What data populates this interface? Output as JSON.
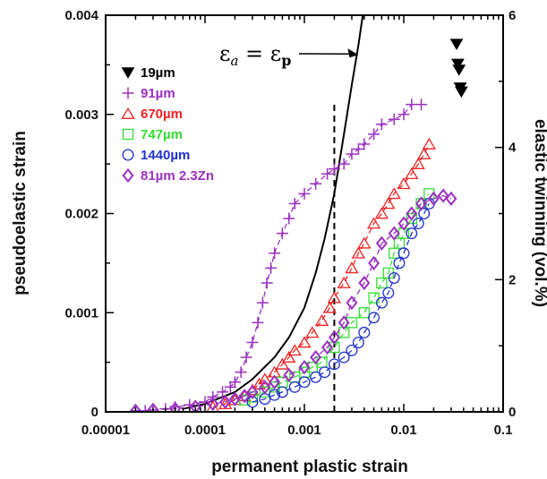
{
  "chart_data": {
    "type": "scatter",
    "title": "",
    "xlabel": "permanent plastic strain",
    "ylabel": "pseudoelastic strain",
    "y2label": "elastic twinning (vol.%)",
    "xscale": "log",
    "xlim": [
      1e-05,
      0.1
    ],
    "ylim": [
      0,
      0.004
    ],
    "y2lim": [
      0,
      6
    ],
    "xticks": [
      {
        "v": 1e-05,
        "label": "0.00001"
      },
      {
        "v": 0.0001,
        "label": "0.0001"
      },
      {
        "v": 0.001,
        "label": "0.001"
      },
      {
        "v": 0.01,
        "label": "0.01"
      },
      {
        "v": 0.1,
        "label": "0.1"
      }
    ],
    "yticks": [
      {
        "v": 0,
        "label": "0"
      },
      {
        "v": 0.001,
        "label": "0.001"
      },
      {
        "v": 0.002,
        "label": "0.002"
      },
      {
        "v": 0.003,
        "label": "0.003"
      },
      {
        "v": 0.004,
        "label": "0.004"
      }
    ],
    "y2ticks": [
      {
        "v": 0,
        "label": "0"
      },
      {
        "v": 2,
        "label": "2"
      },
      {
        "v": 4,
        "label": "4"
      },
      {
        "v": 6,
        "label": "6"
      }
    ],
    "legend_position": "top-left",
    "vline": {
      "x": 0.002,
      "style": "dashed",
      "y_top": 0.0031
    },
    "curve": {
      "x": [
        6e-05,
        0.0001,
        0.0002,
        0.0003,
        0.0005,
        0.0007,
        0.001,
        0.0013,
        0.0016,
        0.002,
        0.0025,
        0.003,
        0.0035,
        0.004,
        0.0045
      ],
      "y": [
        3e-05,
        8e-05,
        0.0002,
        0.00033,
        0.00055,
        0.00075,
        0.00105,
        0.0014,
        0.00175,
        0.0022,
        0.0028,
        0.0033,
        0.0037,
        0.0041,
        0.0045
      ]
    },
    "annotation": {
      "text_main": "ε",
      "sub_a": "a",
      "text_eq": " = ε",
      "sub_p": "p",
      "arrow_to_x": 0.0035,
      "arrow_to_y": 0.0036
    },
    "series": [
      {
        "name": "19µm",
        "marker": "triangle-down-filled",
        "color": "#000000",
        "dashed": false,
        "x": [
          0.034,
          0.035,
          0.036,
          0.037,
          0.038
        ],
        "y": [
          0.00371,
          0.00351,
          0.00345,
          0.00327,
          0.00323
        ]
      },
      {
        "name": "91µm",
        "marker": "plus",
        "color": "#9b30c0",
        "dashed": true,
        "x": [
          2e-05,
          2.5e-05,
          3e-05,
          4e-05,
          5e-05,
          7e-05,
          0.0001,
          0.00012,
          0.00015,
          0.00018,
          0.0002,
          0.00023,
          0.00026,
          0.0003,
          0.00034,
          0.00038,
          0.00042,
          0.00046,
          0.0005,
          0.0006,
          0.0007,
          0.0008,
          0.001,
          0.0013,
          0.0017,
          0.002,
          0.0025,
          0.003,
          0.0035,
          0.004,
          0.005,
          0.006,
          0.008,
          0.01,
          0.012,
          0.015
        ],
        "y": [
          1e-05,
          1e-05,
          2e-05,
          3e-05,
          5e-05,
          7e-05,
          0.0001,
          0.00015,
          0.0002,
          0.00025,
          0.0003,
          0.0004,
          0.00055,
          0.0007,
          0.0009,
          0.0011,
          0.0013,
          0.00145,
          0.0016,
          0.0018,
          0.00195,
          0.0021,
          0.0022,
          0.0023,
          0.0024,
          0.00245,
          0.0025,
          0.0026,
          0.00265,
          0.0027,
          0.0028,
          0.0029,
          0.00295,
          0.003,
          0.0031,
          0.0031
        ]
      },
      {
        "name": "670µm",
        "marker": "triangle-up",
        "color": "#ee2222",
        "dashed": true,
        "x": [
          0.00012,
          0.00016,
          0.0002,
          0.00025,
          0.0003,
          0.00035,
          0.0004,
          0.0005,
          0.0006,
          0.0007,
          0.0008,
          0.001,
          0.0012,
          0.0015,
          0.0018,
          0.002,
          0.0025,
          0.003,
          0.0035,
          0.004,
          0.005,
          0.006,
          0.007,
          0.008,
          0.01,
          0.012,
          0.014,
          0.016,
          0.018
        ],
        "y": [
          5e-05,
          8e-05,
          0.00012,
          0.00016,
          0.00022,
          0.00028,
          0.00033,
          0.0004,
          0.00048,
          0.00055,
          0.00062,
          0.0007,
          0.0008,
          0.00092,
          0.00105,
          0.00115,
          0.0013,
          0.00145,
          0.0016,
          0.0017,
          0.0019,
          0.002,
          0.0021,
          0.0022,
          0.0023,
          0.0024,
          0.0025,
          0.0026,
          0.0027
        ]
      },
      {
        "name": "747µm",
        "marker": "square",
        "color": "#33dd33",
        "dashed": true,
        "x": [
          0.00025,
          0.0003,
          0.0004,
          0.0005,
          0.0006,
          0.0008,
          0.001,
          0.0012,
          0.0015,
          0.002,
          0.0025,
          0.003,
          0.004,
          0.005,
          0.006,
          0.007,
          0.008,
          0.009,
          0.01,
          0.012,
          0.015,
          0.018
        ],
        "y": [
          0.00012,
          0.00015,
          0.0002,
          0.00025,
          0.0003,
          0.00035,
          0.0004,
          0.00045,
          0.0005,
          0.00065,
          0.0008,
          0.0009,
          0.001,
          0.00115,
          0.0013,
          0.0014,
          0.0016,
          0.0017,
          0.0018,
          0.00195,
          0.0021,
          0.0022
        ]
      },
      {
        "name": "1440µm",
        "marker": "circle",
        "color": "#2233cc",
        "dashed": true,
        "x": [
          0.0003,
          0.0004,
          0.0005,
          0.0006,
          0.0008,
          0.001,
          0.0013,
          0.0016,
          0.002,
          0.0025,
          0.003,
          0.0035,
          0.004,
          0.005,
          0.006,
          0.007,
          0.008,
          0.009,
          0.01,
          0.012,
          0.014,
          0.016,
          0.018
        ],
        "y": [
          0.0001,
          0.00013,
          0.00017,
          0.0002,
          0.00025,
          0.0003,
          0.00035,
          0.0004,
          0.00048,
          0.00055,
          0.00062,
          0.0007,
          0.0008,
          0.00095,
          0.0011,
          0.0012,
          0.00135,
          0.0015,
          0.0016,
          0.0018,
          0.0019,
          0.002,
          0.0021
        ]
      },
      {
        "name": "81µm  2.3Zn",
        "marker": "diamond",
        "color": "#9b30c0",
        "dashed": true,
        "x": [
          2e-05,
          3e-05,
          5e-05,
          8e-05,
          0.00012,
          0.00016,
          0.0002,
          0.00025,
          0.0003,
          0.0004,
          0.0005,
          0.0007,
          0.001,
          0.0013,
          0.0017,
          0.002,
          0.0025,
          0.003,
          0.004,
          0.005,
          0.006,
          0.008,
          0.01,
          0.012,
          0.015,
          0.02,
          0.025,
          0.03
        ],
        "y": [
          1e-05,
          2e-05,
          3e-05,
          5e-05,
          8e-05,
          0.0001,
          0.00013,
          0.00016,
          0.0002,
          0.00025,
          0.0003,
          0.00037,
          0.00045,
          0.00055,
          0.00065,
          0.00075,
          0.0009,
          0.0011,
          0.0013,
          0.0015,
          0.0017,
          0.0018,
          0.0019,
          0.002,
          0.0021,
          0.00215,
          0.00218,
          0.00215
        ]
      }
    ]
  }
}
